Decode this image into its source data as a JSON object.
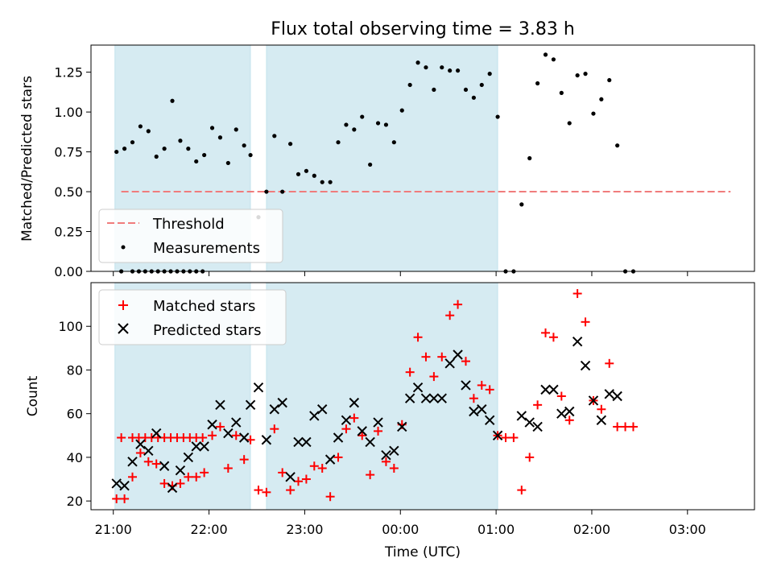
{
  "chart_data": [
    {
      "type": "scatter",
      "title": "Flux total observing time = 3.83 h",
      "xlabel": "",
      "ylabel": "Matched/Predicted stars",
      "x_unit": "minutes after 21:00 UTC",
      "xlim": [
        -14,
        402
      ],
      "ylim": [
        0.0,
        1.42
      ],
      "yticks": [
        "0.00",
        "0.25",
        "0.50",
        "0.75",
        "1.00",
        "1.25"
      ],
      "ytick_values": [
        0,
        0.25,
        0.5,
        0.75,
        1.0,
        1.25
      ],
      "shaded_intervals": [
        [
          1,
          86
        ],
        [
          96,
          241
        ]
      ],
      "threshold": {
        "name": "Threshold",
        "y": 0.5,
        "x_range": [
          5,
          387
        ],
        "color": "#f07c7c"
      },
      "series": [
        {
          "name": "Measurements",
          "color": "#000000",
          "points": [
            [
              5,
              0
            ],
            [
              12,
              0
            ],
            [
              16,
              0
            ],
            [
              20,
              0
            ],
            [
              24,
              0
            ],
            [
              28,
              0
            ],
            [
              32,
              0
            ],
            [
              36,
              0
            ],
            [
              40,
              0
            ],
            [
              44,
              0
            ],
            [
              48,
              0
            ],
            [
              52,
              0
            ],
            [
              56,
              0
            ],
            [
              2,
              0.75
            ],
            [
              7,
              0.77
            ],
            [
              12,
              0.81
            ],
            [
              17,
              0.91
            ],
            [
              22,
              0.88
            ],
            [
              27,
              0.72
            ],
            [
              32,
              0.77
            ],
            [
              37,
              1.07
            ],
            [
              42,
              0.82
            ],
            [
              47,
              0.77
            ],
            [
              52,
              0.69
            ],
            [
              57,
              0.73
            ],
            [
              62,
              0.9
            ],
            [
              67,
              0.84
            ],
            [
              72,
              0.68
            ],
            [
              77,
              0.89
            ],
            [
              82,
              0.79
            ],
            [
              86,
              0.73
            ],
            [
              91,
              0.34
            ],
            [
              96,
              0.5
            ],
            [
              101,
              0.85
            ],
            [
              106,
              0.5
            ],
            [
              111,
              0.8
            ],
            [
              116,
              0.61
            ],
            [
              121,
              0.63
            ],
            [
              126,
              0.6
            ],
            [
              131,
              0.56
            ],
            [
              136,
              0.56
            ],
            [
              141,
              0.81
            ],
            [
              146,
              0.92
            ],
            [
              151,
              0.89
            ],
            [
              156,
              0.97
            ],
            [
              161,
              0.67
            ],
            [
              166,
              0.93
            ],
            [
              171,
              0.92
            ],
            [
              176,
              0.81
            ],
            [
              181,
              1.01
            ],
            [
              186,
              1.17
            ],
            [
              191,
              1.31
            ],
            [
              196,
              1.28
            ],
            [
              201,
              1.14
            ],
            [
              206,
              1.28
            ],
            [
              211,
              1.26
            ],
            [
              216,
              1.26
            ],
            [
              221,
              1.14
            ],
            [
              226,
              1.09
            ],
            [
              231,
              1.17
            ],
            [
              236,
              1.24
            ],
            [
              241,
              0.97
            ],
            [
              246,
              0
            ],
            [
              251,
              0
            ],
            [
              256,
              0.42
            ],
            [
              261,
              0.71
            ],
            [
              266,
              1.18
            ],
            [
              271,
              1.36
            ],
            [
              276,
              1.33
            ],
            [
              281,
              1.12
            ],
            [
              286,
              0.93
            ],
            [
              291,
              1.23
            ],
            [
              296,
              1.24
            ],
            [
              301,
              0.99
            ],
            [
              306,
              1.08
            ],
            [
              311,
              1.2
            ],
            [
              316,
              0.79
            ],
            [
              321,
              0
            ],
            [
              326,
              0
            ]
          ]
        }
      ],
      "legend": {
        "position": "lower-left",
        "entries": [
          "Threshold",
          "Measurements"
        ]
      }
    },
    {
      "type": "scatter",
      "title": "",
      "xlabel": "Time (UTC)",
      "ylabel": "Count",
      "x_unit": "minutes after 21:00 UTC",
      "xlim": [
        -14,
        402
      ],
      "ylim": [
        16,
        120
      ],
      "yticks": [
        "20",
        "40",
        "60",
        "80",
        "100"
      ],
      "ytick_values": [
        20,
        40,
        60,
        80,
        100
      ],
      "xticks": [
        "21:00",
        "22:00",
        "23:00",
        "00:00",
        "01:00",
        "02:00",
        "03:00"
      ],
      "xtick_values": [
        0,
        60,
        120,
        180,
        240,
        300,
        360
      ],
      "shaded_intervals": [
        [
          1,
          86
        ],
        [
          96,
          241
        ]
      ],
      "series": [
        {
          "name": "Matched stars",
          "marker": "plus",
          "color": "#ff0000",
          "points": [
            [
              5,
              49
            ],
            [
              12,
              49
            ],
            [
              16,
              49
            ],
            [
              20,
              49
            ],
            [
              24,
              49
            ],
            [
              28,
              49
            ],
            [
              32,
              49
            ],
            [
              36,
              49
            ],
            [
              40,
              49
            ],
            [
              44,
              49
            ],
            [
              48,
              49
            ],
            [
              52,
              49
            ],
            [
              56,
              49
            ],
            [
              2,
              21
            ],
            [
              7,
              21
            ],
            [
              12,
              31
            ],
            [
              17,
              42
            ],
            [
              22,
              38
            ],
            [
              27,
              37
            ],
            [
              32,
              28
            ],
            [
              37,
              27
            ],
            [
              42,
              28
            ],
            [
              47,
              31
            ],
            [
              52,
              31
            ],
            [
              57,
              33
            ],
            [
              62,
              50
            ],
            [
              67,
              54
            ],
            [
              72,
              35
            ],
            [
              77,
              50
            ],
            [
              82,
              39
            ],
            [
              86,
              48
            ],
            [
              91,
              25
            ],
            [
              96,
              24
            ],
            [
              101,
              53
            ],
            [
              106,
              33
            ],
            [
              111,
              25
            ],
            [
              116,
              29
            ],
            [
              121,
              30
            ],
            [
              126,
              36
            ],
            [
              131,
              35
            ],
            [
              136,
              22
            ],
            [
              141,
              40
            ],
            [
              146,
              53
            ],
            [
              151,
              58
            ],
            [
              156,
              50
            ],
            [
              161,
              32
            ],
            [
              166,
              52
            ],
            [
              171,
              38
            ],
            [
              176,
              35
            ],
            [
              181,
              55
            ],
            [
              186,
              79
            ],
            [
              191,
              95
            ],
            [
              196,
              86
            ],
            [
              201,
              77
            ],
            [
              206,
              86
            ],
            [
              211,
              105
            ],
            [
              216,
              110
            ],
            [
              221,
              84
            ],
            [
              226,
              67
            ],
            [
              231,
              73
            ],
            [
              236,
              71
            ],
            [
              241,
              50
            ],
            [
              246,
              49
            ],
            [
              251,
              49
            ],
            [
              256,
              25
            ],
            [
              261,
              40
            ],
            [
              266,
              64
            ],
            [
              271,
              97
            ],
            [
              276,
              95
            ],
            [
              281,
              68
            ],
            [
              286,
              57
            ],
            [
              291,
              115
            ],
            [
              296,
              102
            ],
            [
              301,
              66
            ],
            [
              306,
              62
            ],
            [
              311,
              83
            ],
            [
              316,
              54
            ],
            [
              321,
              54
            ],
            [
              326,
              54
            ]
          ]
        },
        {
          "name": "Predicted stars",
          "marker": "x",
          "color": "#000000",
          "points": [
            [
              2,
              28
            ],
            [
              7,
              27
            ],
            [
              12,
              38
            ],
            [
              17,
              46
            ],
            [
              22,
              43
            ],
            [
              27,
              51
            ],
            [
              32,
              36
            ],
            [
              37,
              26
            ],
            [
              42,
              34
            ],
            [
              47,
              40
            ],
            [
              52,
              45
            ],
            [
              57,
              45
            ],
            [
              62,
              55
            ],
            [
              67,
              64
            ],
            [
              72,
              51
            ],
            [
              77,
              56
            ],
            [
              82,
              49
            ],
            [
              86,
              64
            ],
            [
              91,
              72
            ],
            [
              96,
              48
            ],
            [
              101,
              62
            ],
            [
              106,
              65
            ],
            [
              111,
              31
            ],
            [
              116,
              47
            ],
            [
              121,
              47
            ],
            [
              126,
              59
            ],
            [
              131,
              62
            ],
            [
              136,
              39
            ],
            [
              141,
              49
            ],
            [
              146,
              57
            ],
            [
              151,
              65
            ],
            [
              156,
              52
            ],
            [
              161,
              47
            ],
            [
              166,
              56
            ],
            [
              171,
              41
            ],
            [
              176,
              43
            ],
            [
              181,
              54
            ],
            [
              186,
              67
            ],
            [
              191,
              72
            ],
            [
              196,
              67
            ],
            [
              201,
              67
            ],
            [
              206,
              67
            ],
            [
              211,
              83
            ],
            [
              216,
              87
            ],
            [
              221,
              73
            ],
            [
              226,
              61
            ],
            [
              231,
              62
            ],
            [
              236,
              57
            ],
            [
              241,
              50
            ],
            [
              256,
              59
            ],
            [
              261,
              56
            ],
            [
              266,
              54
            ],
            [
              271,
              71
            ],
            [
              276,
              71
            ],
            [
              281,
              60
            ],
            [
              286,
              61
            ],
            [
              291,
              93
            ],
            [
              296,
              82
            ],
            [
              301,
              66
            ],
            [
              306,
              57
            ],
            [
              311,
              69
            ],
            [
              316,
              68
            ]
          ]
        }
      ],
      "legend": {
        "position": "upper-left",
        "entries": [
          "Matched stars",
          "Predicted stars"
        ]
      }
    }
  ]
}
